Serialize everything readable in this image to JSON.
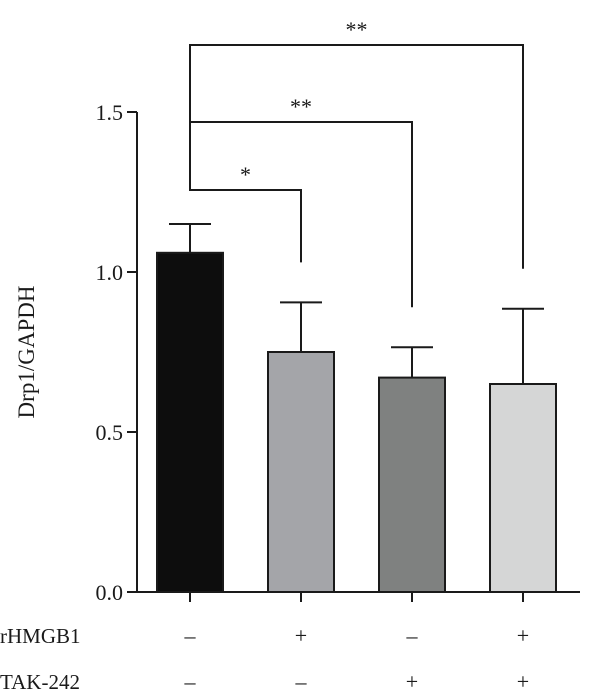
{
  "chart_data": {
    "type": "bar",
    "ylabel": "Drp1/GAPDH",
    "ylim": [
      0,
      1.5
    ],
    "yticks": [
      "0.0",
      "0.5",
      "1.0",
      "1.5"
    ],
    "values": [
      1.06,
      0.75,
      0.67,
      0.65
    ],
    "errors": [
      0.09,
      0.155,
      0.095,
      0.235
    ],
    "colors": [
      "#0d0d0d",
      "#a4a5a9",
      "#7f8180",
      "#d5d6d6"
    ],
    "conditions": [
      {
        "label": "rHMGB1",
        "marks": [
          "–",
          "+",
          "–",
          "+"
        ]
      },
      {
        "label": "TAK-242",
        "marks": [
          "–",
          "–",
          "+",
          "+"
        ]
      }
    ],
    "significance": [
      {
        "from": 0,
        "to": 1,
        "label": "*"
      },
      {
        "from": 0,
        "to": 2,
        "label": "**"
      },
      {
        "from": 0,
        "to": 3,
        "label": "**"
      }
    ],
    "grid": false
  }
}
